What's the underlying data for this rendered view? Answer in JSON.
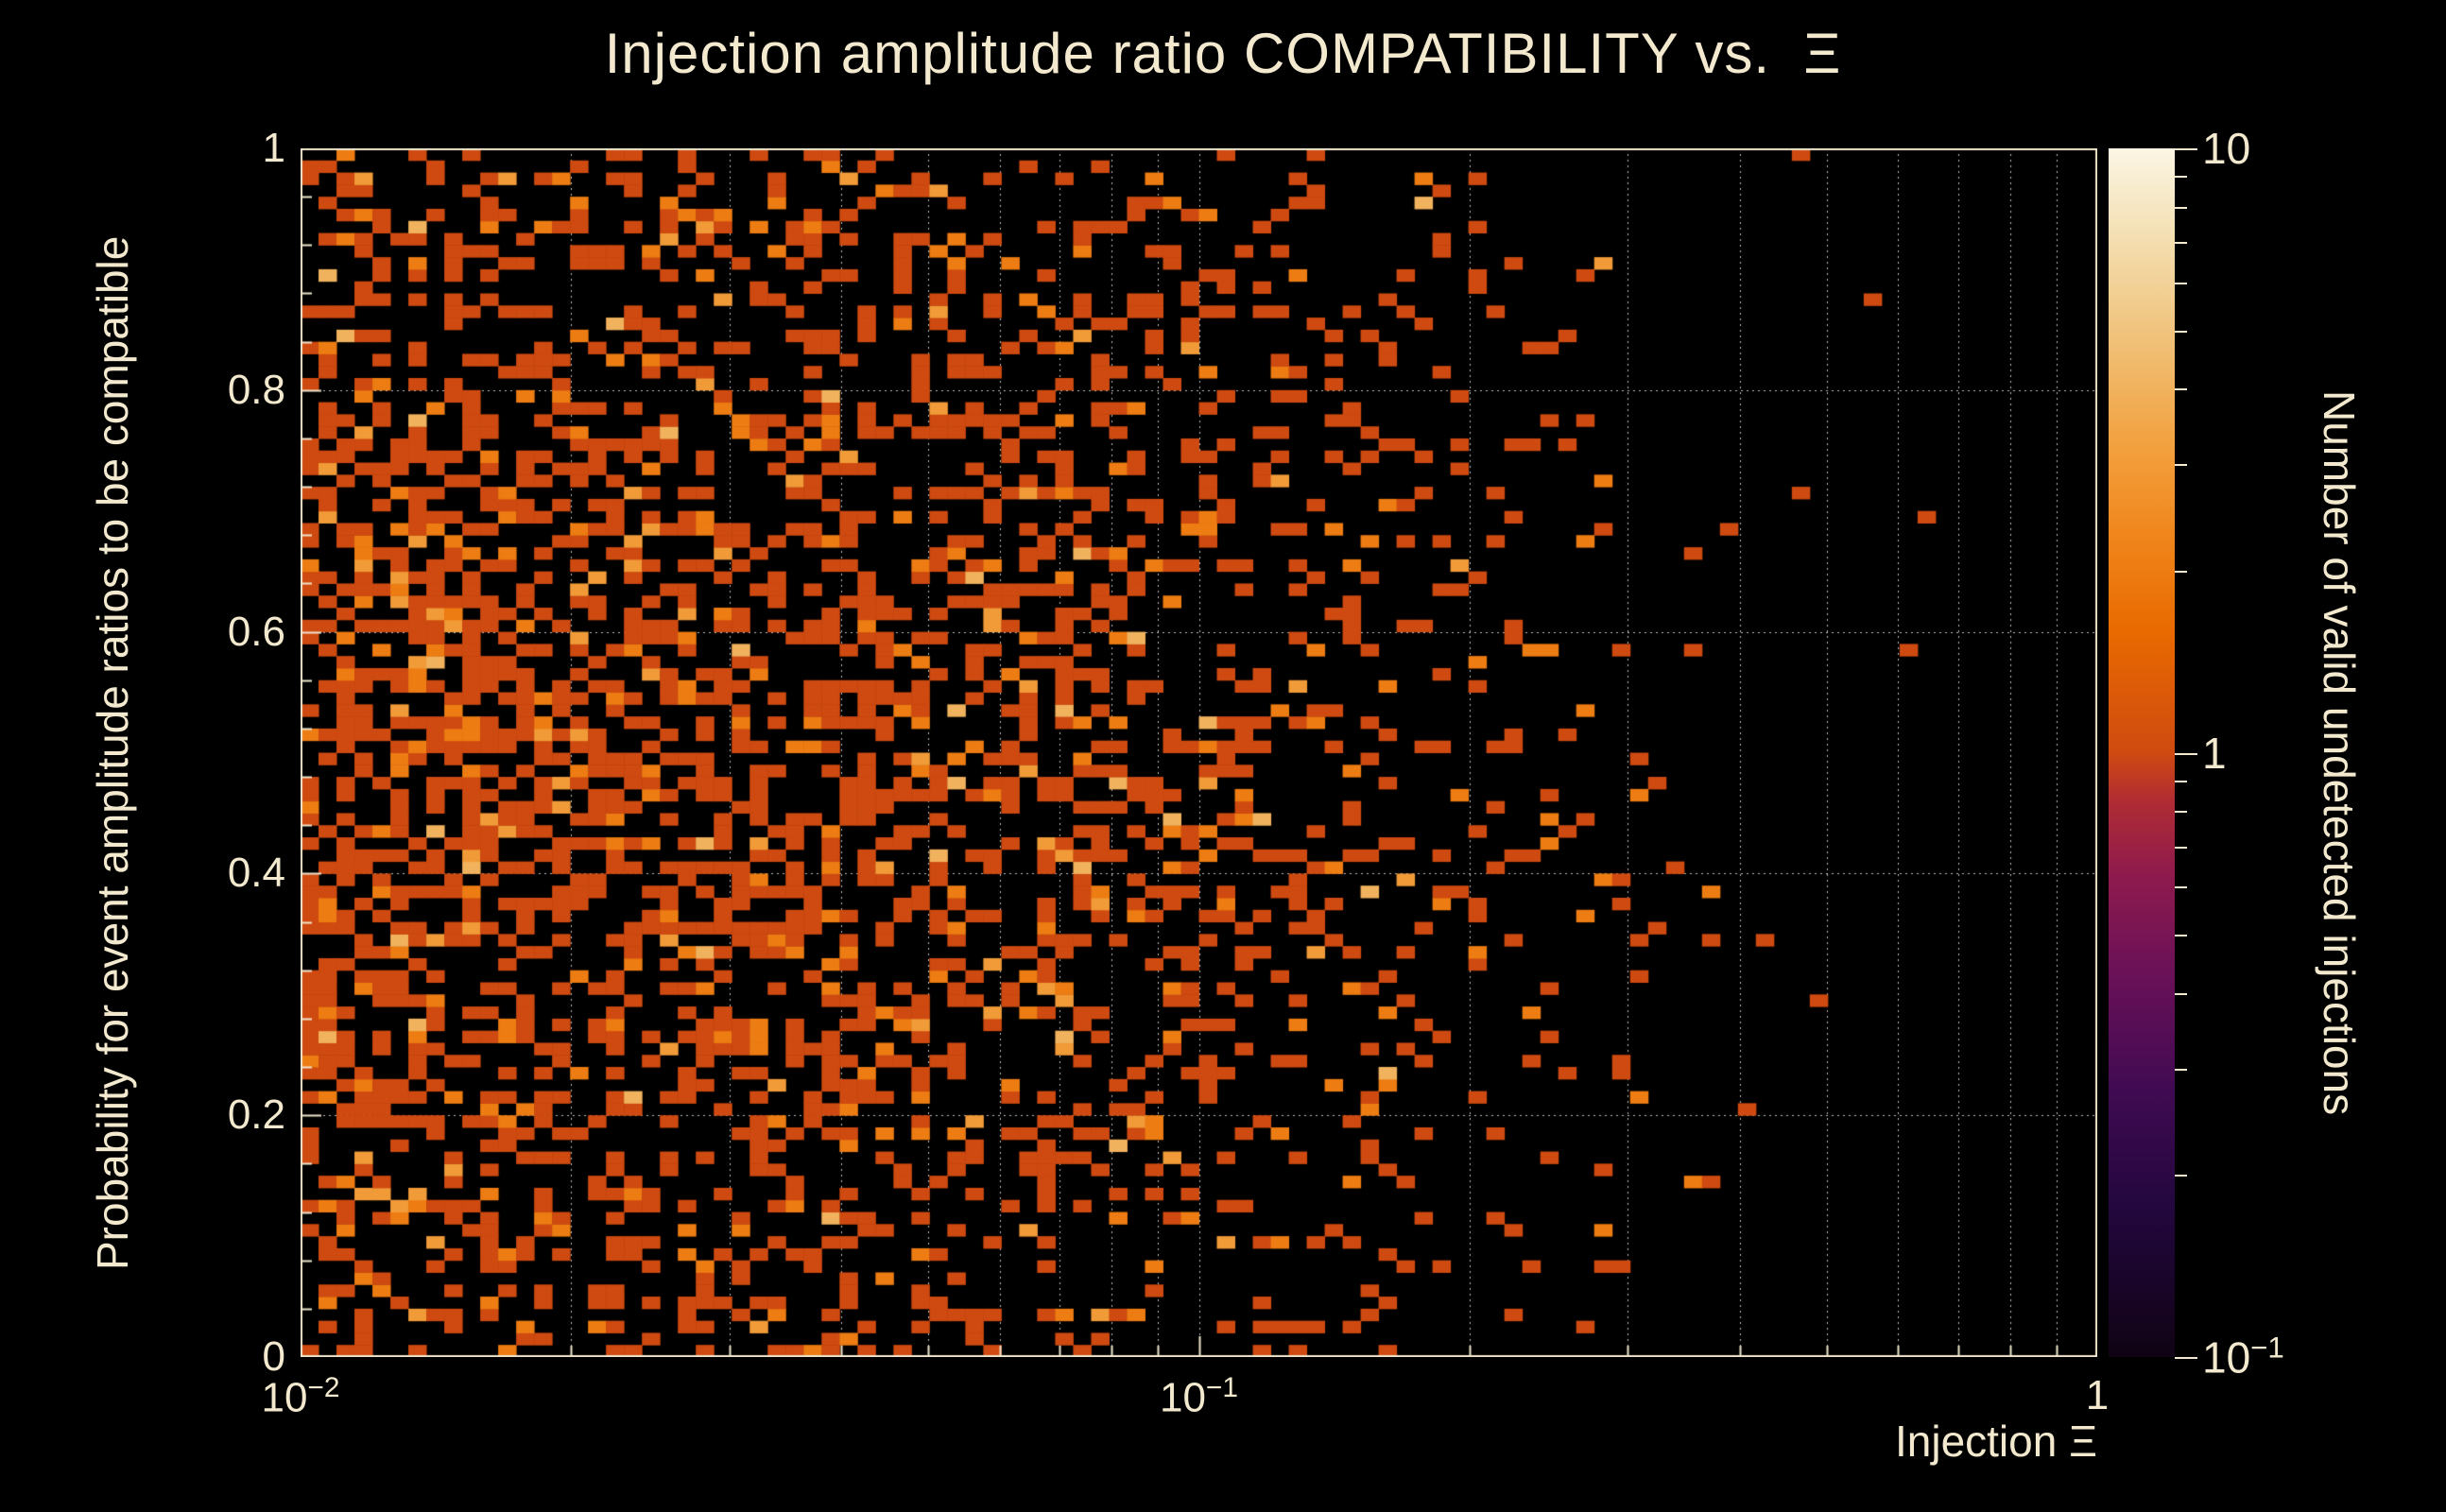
{
  "colors": {
    "background": "#000000",
    "text": "#f3e9ce",
    "frame": "#efe5cc",
    "grid": "rgba(255,255,255,0.75)"
  },
  "chart_data": {
    "type": "heatmap",
    "title": "Injection amplitude ratio COMPATIBILITY vs.  Ξ",
    "xlabel": "Injection Ξ",
    "ylabel": "Probability for event amplitude ratios to be compatible",
    "zlabel": "Number of valid undetected injections",
    "x_scale": "log",
    "x_range": [
      0.01,
      1
    ],
    "y_scale": "linear",
    "y_range": [
      0,
      1
    ],
    "z_scale": "log",
    "z_range": [
      0.1,
      10
    ],
    "grid_on": true,
    "x_ticks": [
      {
        "value": 0.01,
        "label": "10^−2"
      },
      {
        "value": 0.1,
        "label": "10^−1"
      },
      {
        "value": 1,
        "label": "1"
      }
    ],
    "x_minor_ticks": [
      0.02,
      0.03,
      0.04,
      0.05,
      0.06,
      0.07,
      0.08,
      0.09,
      0.2,
      0.3,
      0.4,
      0.5,
      0.6,
      0.7,
      0.8,
      0.9
    ],
    "y_ticks": [
      {
        "value": 0,
        "label": "0"
      },
      {
        "value": 0.2,
        "label": "0.2"
      },
      {
        "value": 0.4,
        "label": "0.4"
      },
      {
        "value": 0.6,
        "label": "0.6"
      },
      {
        "value": 0.8,
        "label": "0.8"
      },
      {
        "value": 1,
        "label": "1"
      }
    ],
    "y_minor_step": 0.04,
    "grid": {
      "x": [
        0.02,
        0.03,
        0.04,
        0.05,
        0.06,
        0.07,
        0.08,
        0.09,
        0.1,
        0.2,
        0.3,
        0.4,
        0.5,
        0.6,
        0.7,
        0.8,
        0.9,
        1.0
      ],
      "y": [
        0.2,
        0.4,
        0.6,
        0.8,
        1.0
      ]
    },
    "colorbar_ticks": [
      {
        "value": 10,
        "label": "10"
      },
      {
        "value": 1,
        "label": "1"
      },
      {
        "value": 0.1,
        "label": "10^−1"
      }
    ],
    "colorbar_minor_ticks": [
      0.2,
      0.3,
      0.4,
      0.5,
      0.6,
      0.7,
      0.8,
      0.9,
      2,
      3,
      4,
      5,
      6,
      7,
      8,
      9
    ],
    "palette": [
      [
        0.0,
        "#100314"
      ],
      [
        0.12,
        "#22073d"
      ],
      [
        0.22,
        "#400a52"
      ],
      [
        0.32,
        "#6b1158"
      ],
      [
        0.4,
        "#8f1b4d"
      ],
      [
        0.46,
        "#b02c33"
      ],
      [
        0.5,
        "#cf4a10"
      ],
      [
        0.6,
        "#e86a00"
      ],
      [
        0.68,
        "#f0861c"
      ],
      [
        0.76,
        "#f2a342"
      ],
      [
        0.85,
        "#f0c47e"
      ],
      [
        0.93,
        "#f4e0b4"
      ],
      [
        1.0,
        "#fbf6e4"
      ]
    ],
    "bins": {
      "x": 100,
      "y": 100
    },
    "cells_model": {
      "representation": "stochastic-approximation",
      "seed": 1337,
      "x_profile": [
        0.72,
        0.66,
        0.6,
        0.55,
        0.48,
        0.38,
        0.26,
        0.12,
        0.025,
        0.006,
        0.0
      ],
      "y_profile": [
        0.38,
        0.52,
        0.7,
        0.82,
        0.88,
        0.9,
        0.88,
        0.8,
        0.6,
        0.52,
        0.46
      ],
      "scale": 0.85,
      "value_weights": [
        [
          1,
          0.8
        ],
        [
          2,
          0.13
        ],
        [
          3,
          0.05
        ],
        [
          4,
          0.02
        ]
      ]
    }
  }
}
